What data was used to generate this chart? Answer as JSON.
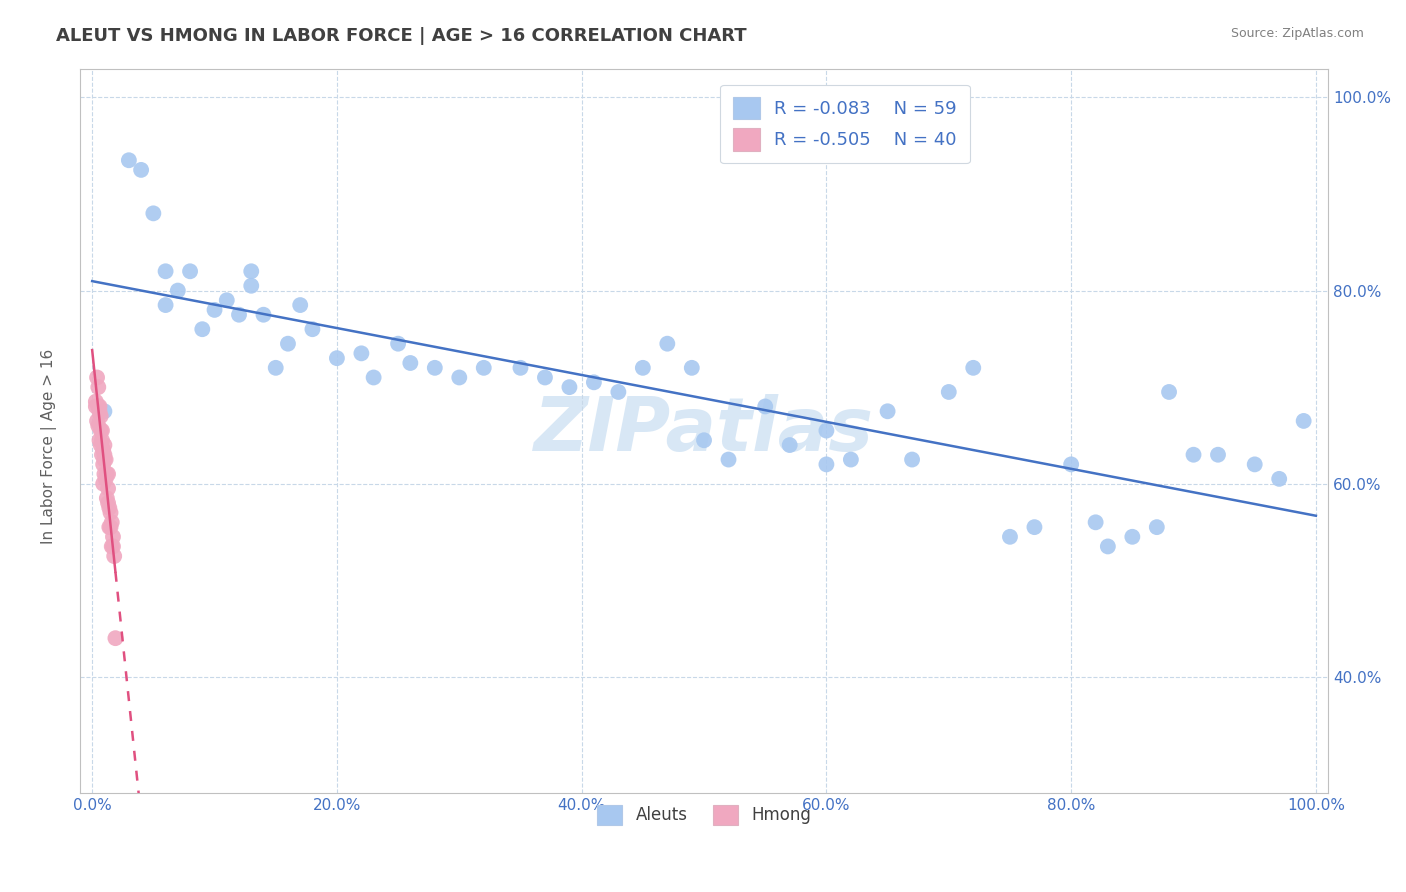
{
  "title": "ALEUT VS HMONG IN LABOR FORCE | AGE > 16 CORRELATION CHART",
  "source": "Source: ZipAtlas.com",
  "ylabel": "In Labor Force | Age > 16",
  "aleuts_R": -0.083,
  "aleuts_N": 59,
  "hmong_R": -0.505,
  "hmong_N": 40,
  "aleuts_color": "#a8c8f0",
  "hmong_color": "#f0a8c0",
  "trend_aleuts_color": "#4472c4",
  "trend_hmong_color": "#e05080",
  "background_color": "#ffffff",
  "grid_color": "#c8d8e8",
  "title_color": "#404040",
  "axis_label_color": "#4472c4",
  "watermark": "ZIPatlas",
  "aleuts_x": [
    0.01,
    0.03,
    0.04,
    0.05,
    0.06,
    0.06,
    0.07,
    0.08,
    0.09,
    0.1,
    0.11,
    0.12,
    0.13,
    0.13,
    0.14,
    0.15,
    0.16,
    0.17,
    0.18,
    0.2,
    0.22,
    0.23,
    0.25,
    0.26,
    0.28,
    0.3,
    0.32,
    0.35,
    0.37,
    0.39,
    0.41,
    0.43,
    0.45,
    0.47,
    0.49,
    0.5,
    0.52,
    0.55,
    0.57,
    0.6,
    0.6,
    0.62,
    0.65,
    0.67,
    0.7,
    0.72,
    0.75,
    0.77,
    0.8,
    0.82,
    0.83,
    0.85,
    0.87,
    0.88,
    0.9,
    0.92,
    0.95,
    0.97,
    0.99
  ],
  "aleuts_y": [
    0.675,
    0.935,
    0.925,
    0.88,
    0.785,
    0.82,
    0.8,
    0.82,
    0.76,
    0.78,
    0.79,
    0.775,
    0.82,
    0.805,
    0.775,
    0.72,
    0.745,
    0.785,
    0.76,
    0.73,
    0.735,
    0.71,
    0.745,
    0.725,
    0.72,
    0.71,
    0.72,
    0.72,
    0.71,
    0.7,
    0.705,
    0.695,
    0.72,
    0.745,
    0.72,
    0.645,
    0.625,
    0.68,
    0.64,
    0.655,
    0.62,
    0.625,
    0.675,
    0.625,
    0.695,
    0.72,
    0.545,
    0.555,
    0.62,
    0.56,
    0.535,
    0.545,
    0.555,
    0.695,
    0.63,
    0.63,
    0.62,
    0.605,
    0.665
  ],
  "hmong_x": [
    0.003,
    0.003,
    0.004,
    0.004,
    0.005,
    0.005,
    0.005,
    0.006,
    0.006,
    0.006,
    0.007,
    0.007,
    0.007,
    0.008,
    0.008,
    0.008,
    0.009,
    0.009,
    0.009,
    0.01,
    0.01,
    0.01,
    0.01,
    0.011,
    0.011,
    0.012,
    0.012,
    0.013,
    0.013,
    0.013,
    0.014,
    0.014,
    0.015,
    0.015,
    0.016,
    0.016,
    0.017,
    0.017,
    0.018,
    0.019
  ],
  "hmong_y": [
    0.685,
    0.68,
    0.71,
    0.665,
    0.7,
    0.68,
    0.66,
    0.68,
    0.645,
    0.675,
    0.655,
    0.64,
    0.67,
    0.645,
    0.63,
    0.655,
    0.62,
    0.6,
    0.635,
    0.63,
    0.64,
    0.61,
    0.625,
    0.625,
    0.605,
    0.61,
    0.585,
    0.595,
    0.61,
    0.58,
    0.575,
    0.555,
    0.555,
    0.57,
    0.56,
    0.535,
    0.545,
    0.535,
    0.525,
    0.44
  ],
  "ylim": [
    0.28,
    1.03
  ],
  "xlim": [
    -0.01,
    1.01
  ],
  "yticks": [
    0.4,
    0.6,
    0.8,
    1.0
  ],
  "ytick_labels": [
    "40.0%",
    "60.0%",
    "80.0%",
    "100.0%"
  ],
  "xticks": [
    0.0,
    0.2,
    0.4,
    0.6,
    0.8,
    1.0
  ],
  "xtick_labels": [
    "0.0%",
    "20.0%",
    "40.0%",
    "60.0%",
    "80.0%",
    "100.0%"
  ]
}
